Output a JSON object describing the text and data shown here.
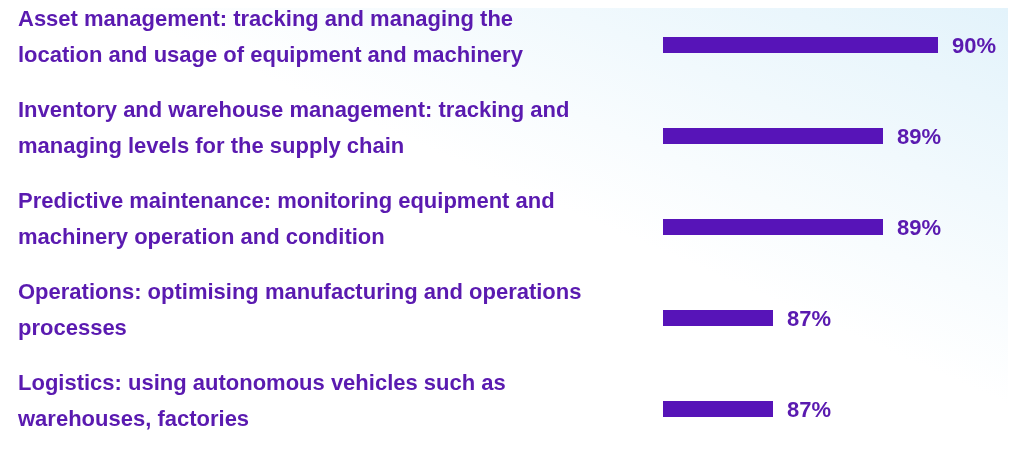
{
  "chart_data": {
    "type": "bar",
    "orientation": "horizontal",
    "categories": [
      "Asset management: tracking and managing the location and usage of equipment and machinery",
      "Inventory and warehouse management: tracking and managing levels for the supply chain",
      "Predictive maintenance: monitoring equipment and machinery operation and condition",
      "Operations: optimising manufacturing and operations processes",
      "Logistics: using autonomous vehicles such as warehouses, factories"
    ],
    "values": [
      90,
      89,
      89,
      87,
      87
    ],
    "value_labels": [
      "90%",
      "89%",
      "89%",
      "87%",
      "87%"
    ],
    "xlim": [
      85,
      90
    ],
    "color": "#5714b8"
  }
}
